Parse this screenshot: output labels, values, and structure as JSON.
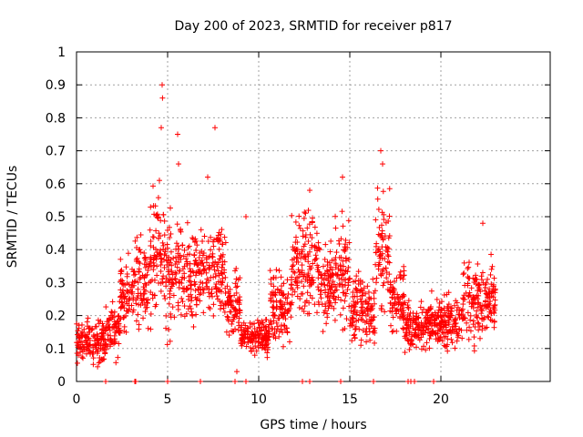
{
  "chart_data": {
    "type": "scatter",
    "title": "Day 200 of 2023, SRMTID for receiver p817",
    "xlabel": "GPS time / hours",
    "ylabel": "SRMTID / TECUs",
    "xlim": [
      0,
      26
    ],
    "ylim": [
      0,
      1
    ],
    "x_ticks": [
      "0",
      "5",
      "10",
      "15",
      "20"
    ],
    "y_ticks": [
      "0",
      "0.1",
      "0.2",
      "0.3",
      "0.4",
      "0.5",
      "0.6",
      "0.7",
      "0.8",
      "0.9",
      "1"
    ],
    "grid": true,
    "marker": "plus",
    "color": "#ff0000",
    "segments": [
      {
        "start": 0.0,
        "end": 0.6,
        "base": 0.13,
        "spread": 0.05
      },
      {
        "start": 0.6,
        "end": 1.6,
        "base": 0.12,
        "spread": 0.06
      },
      {
        "start": 1.6,
        "end": 2.4,
        "base": 0.15,
        "spread": 0.07
      },
      {
        "start": 2.4,
        "end": 3.2,
        "base": 0.26,
        "spread": 0.09
      },
      {
        "start": 3.2,
        "end": 4.0,
        "base": 0.3,
        "spread": 0.12
      },
      {
        "start": 4.0,
        "end": 4.8,
        "base": 0.38,
        "spread": 0.16
      },
      {
        "start": 4.8,
        "end": 5.8,
        "base": 0.33,
        "spread": 0.15
      },
      {
        "start": 5.8,
        "end": 6.8,
        "base": 0.32,
        "spread": 0.12
      },
      {
        "start": 6.8,
        "end": 8.2,
        "base": 0.33,
        "spread": 0.12
      },
      {
        "start": 8.2,
        "end": 9.0,
        "base": 0.22,
        "spread": 0.09
      },
      {
        "start": 9.0,
        "end": 10.6,
        "base": 0.14,
        "spread": 0.05
      },
      {
        "start": 10.6,
        "end": 11.8,
        "base": 0.22,
        "spread": 0.09
      },
      {
        "start": 11.8,
        "end": 13.2,
        "base": 0.36,
        "spread": 0.13
      },
      {
        "start": 13.2,
        "end": 14.2,
        "base": 0.3,
        "spread": 0.11
      },
      {
        "start": 14.2,
        "end": 15.0,
        "base": 0.33,
        "spread": 0.14
      },
      {
        "start": 15.0,
        "end": 16.4,
        "base": 0.22,
        "spread": 0.09
      },
      {
        "start": 16.4,
        "end": 17.2,
        "base": 0.38,
        "spread": 0.16
      },
      {
        "start": 17.2,
        "end": 18.0,
        "base": 0.25,
        "spread": 0.08
      },
      {
        "start": 18.0,
        "end": 19.4,
        "base": 0.17,
        "spread": 0.06
      },
      {
        "start": 19.4,
        "end": 21.2,
        "base": 0.18,
        "spread": 0.07
      },
      {
        "start": 21.2,
        "end": 23.0,
        "base": 0.24,
        "spread": 0.1
      }
    ],
    "peaks": [
      {
        "x": 4.7,
        "y": 0.9
      },
      {
        "x": 4.72,
        "y": 0.86
      },
      {
        "x": 4.65,
        "y": 0.77
      },
      {
        "x": 4.55,
        "y": 0.61
      },
      {
        "x": 5.55,
        "y": 0.75
      },
      {
        "x": 5.6,
        "y": 0.66
      },
      {
        "x": 7.6,
        "y": 0.77
      },
      {
        "x": 7.2,
        "y": 0.62
      },
      {
        "x": 16.7,
        "y": 0.7
      },
      {
        "x": 16.8,
        "y": 0.66
      },
      {
        "x": 14.6,
        "y": 0.62
      },
      {
        "x": 12.8,
        "y": 0.58
      },
      {
        "x": 22.3,
        "y": 0.48
      },
      {
        "x": 9.3,
        "y": 0.5
      },
      {
        "x": 8.8,
        "y": 0.03
      }
    ],
    "zero_points": [
      1.6,
      3.2,
      3.25,
      5.0,
      6.8,
      8.7,
      9.3,
      12.4,
      12.8,
      14.5,
      16.3,
      18.2,
      18.35,
      18.55,
      19.6
    ]
  }
}
